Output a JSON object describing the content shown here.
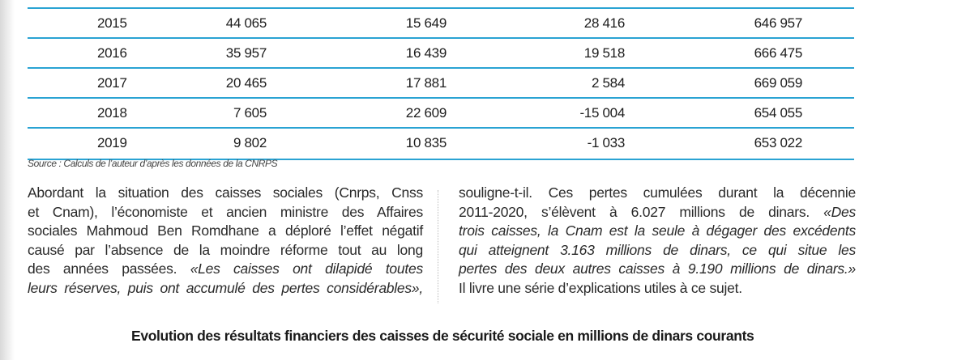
{
  "table": {
    "rows": [
      {
        "year": "2015",
        "v1": "44 065",
        "v2": "15 649",
        "v3": "28 416",
        "v4": "646 957"
      },
      {
        "year": "2016",
        "v1": "35 957",
        "v2": "16 439",
        "v3": "19 518",
        "v4": "666 475"
      },
      {
        "year": "2017",
        "v1": "20 465",
        "v2": "17 881",
        "v3": "2 584",
        "v4": "669 059"
      },
      {
        "year": "2018",
        "v1": "7 605",
        "v2": "22 609",
        "v3": "-15 004",
        "v4": "654 055"
      },
      {
        "year": "2019",
        "v1": "9 802",
        "v2": "10 835",
        "v3": "-1 033",
        "v4": "653 022"
      }
    ]
  },
  "source": "Source : Calculs de l’auteur d’après les données de la CNRPS",
  "article": {
    "left_lines": [
      "Abordant la situation des caisses sociales (Cnrps, Cnss",
      "et Cnam), l’économiste et ancien ministre des Affaires",
      "sociales Mahmoud Ben Romdhane a déploré l’effet négatif",
      "causé par l’absence de la moindre réforme tout au long",
      "des années passées. "
    ],
    "left_quote_a": "«Les caisses ont dilapidé toutes",
    "left_quote_b": "leurs réserves, puis ont accumulé des pertes considérables»,",
    "right_l1": "souligne-t-il. Ces pertes cumulées durant la décennie",
    "right_l2a": "2011-2020, s’élèvent à 6.027 millions de dinars. ",
    "right_l2b": "«Des",
    "right_q1": "trois caisses, la Cnam est la seule à dégager des excédents",
    "right_q2": "qui atteignent 3.163 millions de dinars, ce qui situe les",
    "right_q3": "pertes des deux autres caisses à 9.190 millions de dinars.»",
    "right_l6": "Il livre une série d’explications utiles à ce sujet."
  },
  "figure_title": "Evolution des résultats financiers des caisses de sécurité sociale en millions de dinars courants"
}
